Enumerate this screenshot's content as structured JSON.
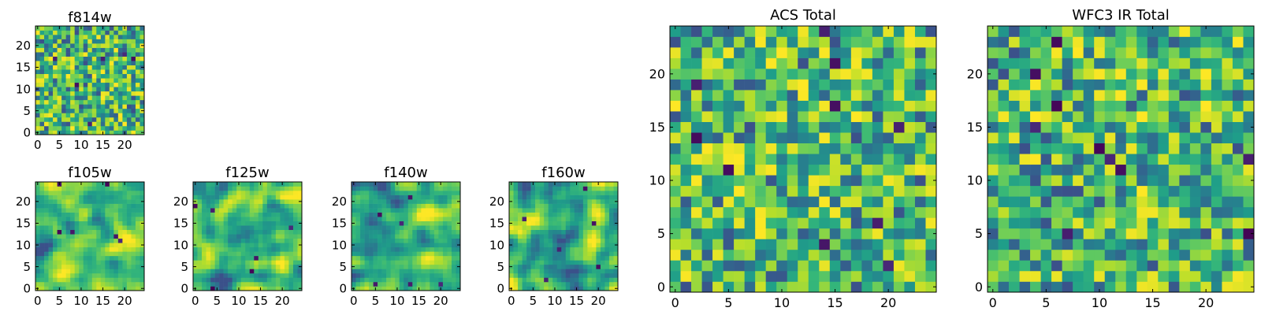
{
  "chart_data": [
    {
      "id": "f814w",
      "type": "heatmap",
      "title": "f814w",
      "n": 25,
      "seed": 814,
      "xticks": [
        "0",
        "5",
        "10",
        "15",
        "20"
      ],
      "yticks": [
        "0",
        "5",
        "10",
        "15",
        "20"
      ],
      "xlim": [
        -0.5,
        24.5
      ],
      "ylim": [
        -0.5,
        24.5
      ],
      "grid": false,
      "colormap": "viridis",
      "smoothness": 0
    },
    {
      "id": "f105w",
      "type": "heatmap",
      "title": "f105w",
      "n": 25,
      "seed": 105,
      "xticks": [
        "0",
        "5",
        "10",
        "15",
        "20"
      ],
      "yticks": [
        "0",
        "5",
        "10",
        "15",
        "20"
      ],
      "xlim": [
        -0.5,
        24.5
      ],
      "ylim": [
        -0.5,
        24.5
      ],
      "grid": false,
      "colormap": "viridis",
      "smoothness": 2
    },
    {
      "id": "f125w",
      "type": "heatmap",
      "title": "f125w",
      "n": 25,
      "seed": 125,
      "xticks": [
        "0",
        "5",
        "10",
        "15",
        "20"
      ],
      "yticks": [
        "0",
        "5",
        "10",
        "15",
        "20"
      ],
      "xlim": [
        -0.5,
        24.5
      ],
      "ylim": [
        -0.5,
        24.5
      ],
      "grid": false,
      "colormap": "viridis",
      "smoothness": 2
    },
    {
      "id": "f140w",
      "type": "heatmap",
      "title": "f140w",
      "n": 25,
      "seed": 140,
      "xticks": [
        "0",
        "5",
        "10",
        "15",
        "20"
      ],
      "yticks": [
        "0",
        "5",
        "10",
        "15",
        "20"
      ],
      "xlim": [
        -0.5,
        24.5
      ],
      "ylim": [
        -0.5,
        24.5
      ],
      "grid": false,
      "colormap": "viridis",
      "smoothness": 2
    },
    {
      "id": "f160w",
      "type": "heatmap",
      "title": "f160w",
      "n": 25,
      "seed": 160,
      "xticks": [
        "0",
        "5",
        "10",
        "15",
        "20"
      ],
      "yticks": [
        "0",
        "5",
        "10",
        "15",
        "20"
      ],
      "xlim": [
        -0.5,
        24.5
      ],
      "ylim": [
        -0.5,
        24.5
      ],
      "grid": false,
      "colormap": "viridis",
      "smoothness": 2
    },
    {
      "id": "acs_total",
      "type": "heatmap",
      "title": "ACS Total",
      "n": 25,
      "seed": 901,
      "xticks": [
        "0",
        "5",
        "10",
        "15",
        "20"
      ],
      "yticks": [
        "0",
        "5",
        "10",
        "15",
        "20"
      ],
      "xlim": [
        -0.5,
        24.5
      ],
      "ylim": [
        -0.5,
        24.5
      ],
      "grid": false,
      "colormap": "viridis",
      "smoothness": 0
    },
    {
      "id": "wfc3_ir_total",
      "type": "heatmap",
      "title": "WFC3 IR Total",
      "n": 25,
      "seed": 902,
      "xticks": [
        "0",
        "5",
        "10",
        "15",
        "20"
      ],
      "yticks": [
        "0",
        "5",
        "10",
        "15",
        "20"
      ],
      "xlim": [
        -0.5,
        24.5
      ],
      "ylim": [
        -0.5,
        24.5
      ],
      "grid": false,
      "colormap": "viridis",
      "smoothness": 0
    }
  ]
}
